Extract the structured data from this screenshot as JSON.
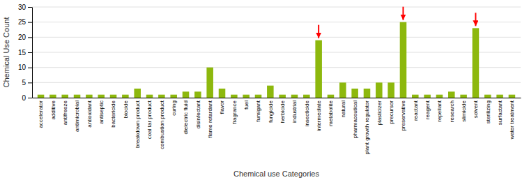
{
  "chart_data": {
    "type": "bar",
    "categories": [
      "accelerator",
      "additive",
      "antifreeze",
      "antimicrobial",
      "antioxidant",
      "antiseptic",
      "bactericide",
      "biocide",
      "breakdown product",
      "coal tar product",
      "combustion product",
      "curing",
      "dielectric fluid",
      "disinfectant",
      "flame retardant",
      "flavor",
      "fragrance",
      "fuel",
      "fumigant",
      "fungicide",
      "herbicide",
      "industrial",
      "insecticide",
      "intermediate",
      "metabolite",
      "natural",
      "pharmaceutical",
      "plant growth regulator",
      "plasticizer",
      "precursor",
      "preservative",
      "reactant",
      "reagent",
      "repellant",
      "research",
      "slimicide",
      "solvent",
      "sterilizing",
      "surfactant",
      "water treatment"
    ],
    "values": [
      1,
      1,
      1,
      1,
      1,
      1,
      1,
      1,
      3,
      1,
      1,
      1,
      2,
      2,
      10,
      3,
      1,
      1,
      1,
      4,
      1,
      1,
      1,
      19,
      1,
      5,
      3,
      3,
      5,
      5,
      25,
      1,
      1,
      1,
      2,
      1,
      23,
      1,
      1,
      1
    ],
    "color": "#8db80d",
    "xlabel": "Chemical use Categories",
    "ylabel": "Chemical Use Count",
    "ylim": [
      0,
      30
    ],
    "yticks": [
      0,
      5,
      10,
      15,
      20,
      25,
      30
    ],
    "grid": true,
    "annotations": [
      {
        "x": "intermediate",
        "color": "red"
      },
      {
        "x": "preservative",
        "color": "red"
      },
      {
        "x": "solvent",
        "color": "red"
      }
    ]
  }
}
